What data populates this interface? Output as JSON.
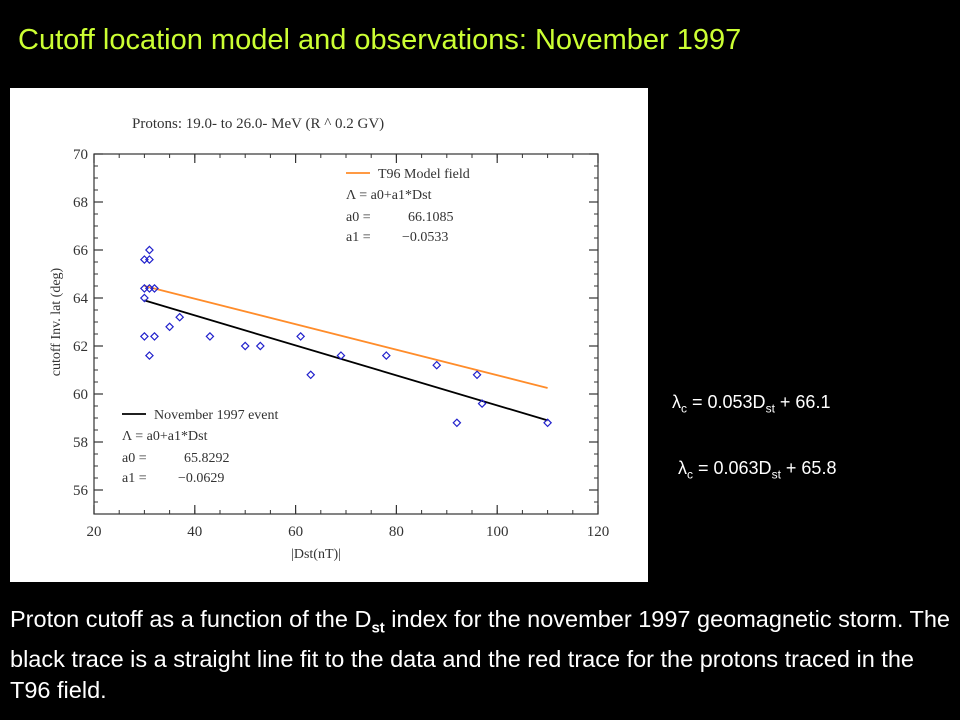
{
  "slide": {
    "title": "Cutoff location model and observations: November 1997",
    "equation_model": {
      "lambda_sub": "c",
      "prefix": " = 0.053D",
      "sub": "st",
      "suffix": " + 66.1"
    },
    "equation_event": {
      "lambda_sub": "c",
      "prefix": " = 0.063D",
      "sub": "st",
      "suffix": " + 65.8"
    },
    "caption": {
      "part1": "Proton cutoff as a function of the D",
      "sub": "st",
      "part2": " index for the november 1997 geomagnetic storm. The black trace is a straight line fit to the data and the red trace for the protons traced in the T96 field."
    }
  },
  "chart_data": {
    "type": "scatter",
    "title": "Protons: 19.0- to 26.0- MeV (R ^ 0.2 GV)",
    "xlabel": "|Dst(nT)|",
    "ylabel": "cutoff Inv. lat (deg)",
    "xlim": [
      20,
      120
    ],
    "ylim": [
      55,
      70
    ],
    "xticks": [
      20,
      40,
      60,
      80,
      100,
      120
    ],
    "yticks": [
      56,
      58,
      60,
      62,
      64,
      66,
      68,
      70
    ],
    "points": [
      [
        30,
        65.6
      ],
      [
        31,
        65.6
      ],
      [
        31,
        66.0
      ],
      [
        30,
        64.4
      ],
      [
        31,
        64.4
      ],
      [
        32,
        64.4
      ],
      [
        30,
        64.0
      ],
      [
        30,
        62.4
      ],
      [
        32,
        62.4
      ],
      [
        31,
        61.6
      ],
      [
        35,
        62.8
      ],
      [
        37,
        63.2
      ],
      [
        43,
        62.4
      ],
      [
        50,
        62.0
      ],
      [
        53,
        62.0
      ],
      [
        61,
        62.4
      ],
      [
        63,
        60.8
      ],
      [
        69,
        61.6
      ],
      [
        78,
        61.6
      ],
      [
        88,
        61.2
      ],
      [
        92,
        58.8
      ],
      [
        96,
        60.8
      ],
      [
        97,
        59.6
      ],
      [
        110,
        58.8
      ]
    ],
    "point_color": "#2222cc",
    "series": [
      {
        "name": "T96 Model field",
        "color": "#ff8c2a",
        "x": [
          30,
          110
        ],
        "y": [
          64.5,
          60.25
        ],
        "formula": "Λ = a0+a1*Dst",
        "a0_label": "a0 =",
        "a0": "66.1085",
        "a1_label": "a1 =",
        "a1": "−0.0533"
      },
      {
        "name": "November 1997 event",
        "color": "#000000",
        "x": [
          30,
          110
        ],
        "y": [
          63.9,
          58.9
        ],
        "formula": "Λ = a0+a1*Dst",
        "a0_label": "a0 =",
        "a0": "65.8292",
        "a1_label": "a1 =",
        "a1": "−0.0629"
      }
    ],
    "legend_placement": [
      "top-right",
      "bottom-left"
    ]
  }
}
